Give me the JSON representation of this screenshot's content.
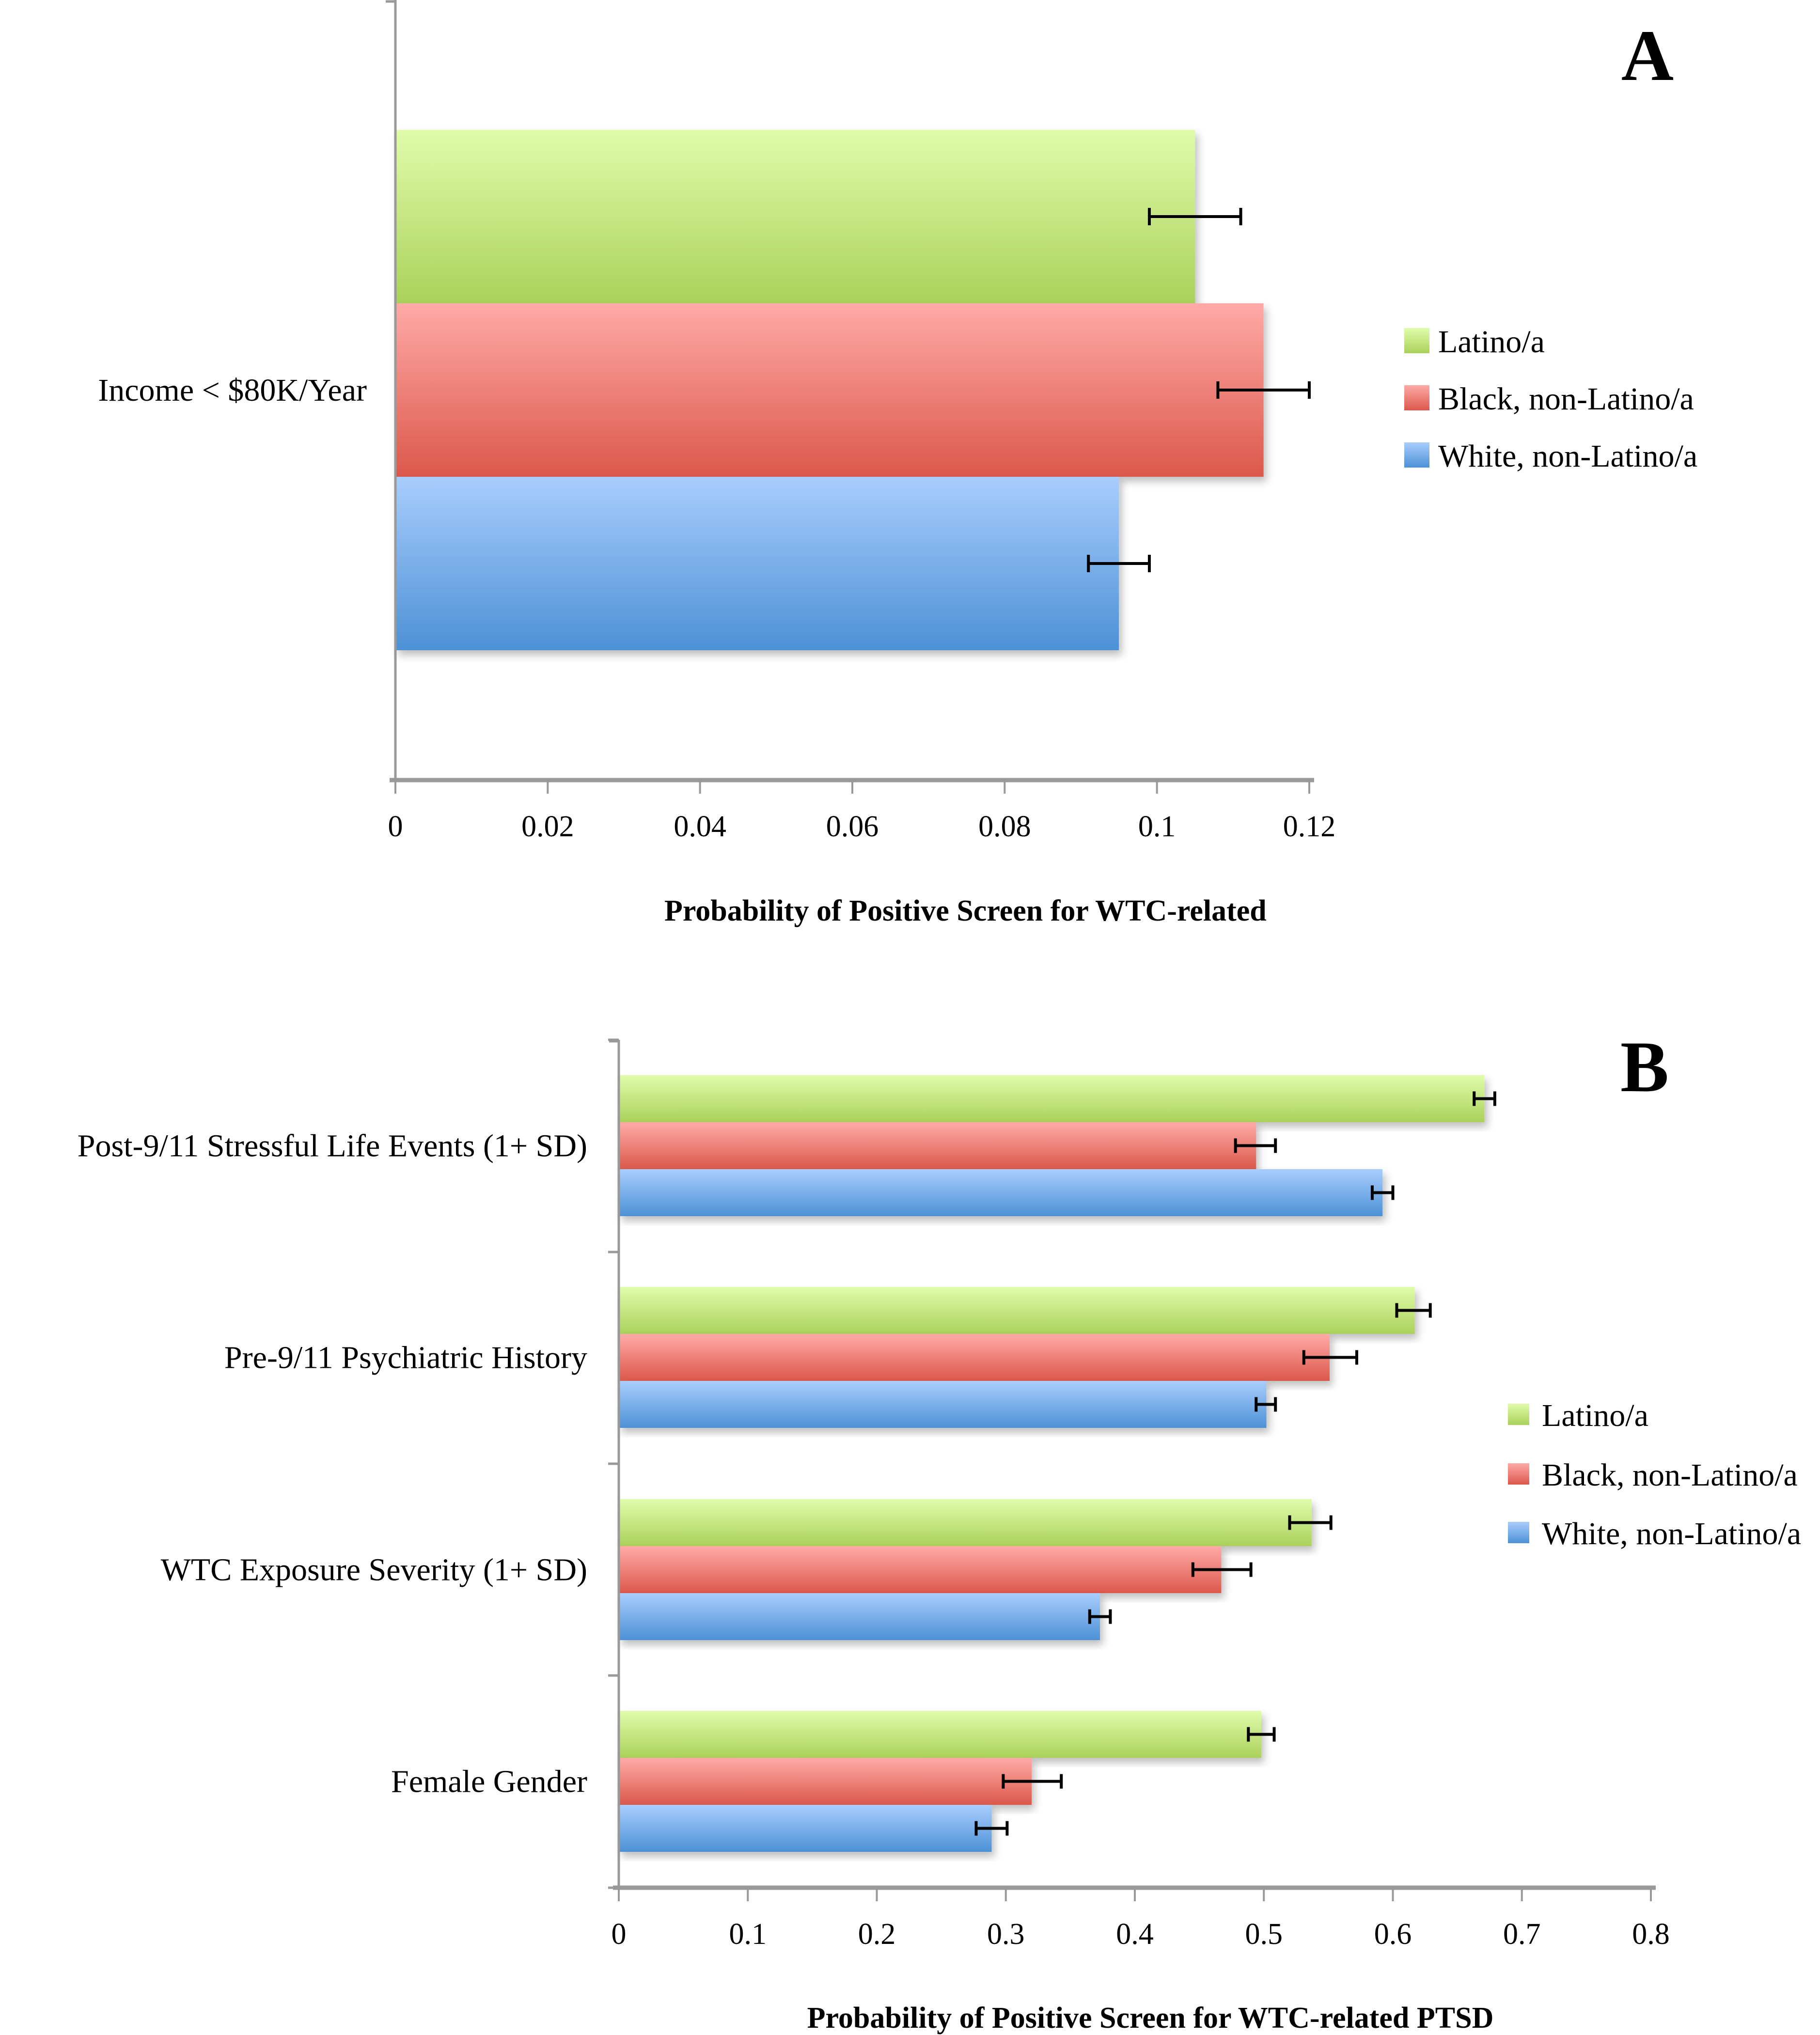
{
  "chart_data": [
    {
      "panel": "A",
      "type": "bar",
      "orientation": "horizontal",
      "title": "",
      "panel_letter": "A",
      "xlabel": "Probability of Positive Screen for WTC-related",
      "ylabel": "",
      "xlim": [
        0,
        0.12
      ],
      "xticks": [
        "0",
        "0.02",
        "0.04",
        "0.06",
        "0.08",
        "0.1",
        "0.12"
      ],
      "tick_values": [
        0,
        0.02,
        0.04,
        0.06,
        0.08,
        0.1,
        0.12
      ],
      "grid": false,
      "legend_position": "right",
      "categories": [
        "Income < $80K/Year"
      ],
      "series": [
        {
          "name": "Latino/a",
          "color_top": "#e0fcab",
          "color_bottom": "#abd15b",
          "values": [
            0.105
          ],
          "error_low": [
            0.099
          ],
          "error_high": [
            0.111
          ]
        },
        {
          "name": "Black, non-Latino/a",
          "color_top": "#ffaaa7",
          "color_bottom": "#dc584c",
          "values": [
            0.114
          ],
          "error_low": [
            0.108
          ],
          "error_high": [
            0.12
          ]
        },
        {
          "name": "White, non-Latino/a",
          "color_top": "#a9cdfd",
          "color_bottom": "#4d91d6",
          "values": [
            0.095
          ],
          "error_low": [
            0.091
          ],
          "error_high": [
            0.099
          ]
        }
      ]
    },
    {
      "panel": "B",
      "type": "bar",
      "orientation": "horizontal",
      "title": "",
      "panel_letter": "B",
      "xlabel": "Probability of Positive Screen for WTC-related PTSD",
      "ylabel": "",
      "xlim": [
        0,
        0.8
      ],
      "xticks": [
        "0",
        "0.1",
        "0.2",
        "0.3",
        "0.4",
        "0.5",
        "0.6",
        "0.7",
        "0.8"
      ],
      "tick_values": [
        0,
        0.1,
        0.2,
        0.3,
        0.4,
        0.5,
        0.6,
        0.7,
        0.8
      ],
      "grid": false,
      "legend_position": "right",
      "categories": [
        "Post-9/11 Stressful Life Events (1+ SD)",
        "Pre-9/11 Psychiatric History",
        "WTC Exposure Severity (1+ SD)",
        "Female Gender"
      ],
      "series": [
        {
          "name": "Latino/a",
          "color_top": "#e0fcab",
          "color_bottom": "#abd15b",
          "values": [
            0.671,
            0.617,
            0.537,
            0.498
          ],
          "error_low": [
            0.663,
            0.603,
            0.52,
            0.488
          ],
          "error_high": [
            0.679,
            0.629,
            0.552,
            0.508
          ]
        },
        {
          "name": "Black, non-Latino/a",
          "color_top": "#ffaaa7",
          "color_bottom": "#dc584c",
          "values": [
            0.494,
            0.551,
            0.467,
            0.32
          ],
          "error_low": [
            0.478,
            0.531,
            0.445,
            0.298
          ],
          "error_high": [
            0.509,
            0.572,
            0.49,
            0.343
          ]
        },
        {
          "name": "White, non-Latino/a",
          "color_top": "#a9cdfd",
          "color_bottom": "#4d91d6",
          "values": [
            0.592,
            0.502,
            0.373,
            0.289
          ],
          "error_low": [
            0.584,
            0.494,
            0.365,
            0.277
          ],
          "error_high": [
            0.6,
            0.509,
            0.381,
            0.301
          ]
        }
      ]
    }
  ],
  "colors": {
    "axis": "#999999",
    "text": "#000000",
    "error_bar": "#000000"
  }
}
